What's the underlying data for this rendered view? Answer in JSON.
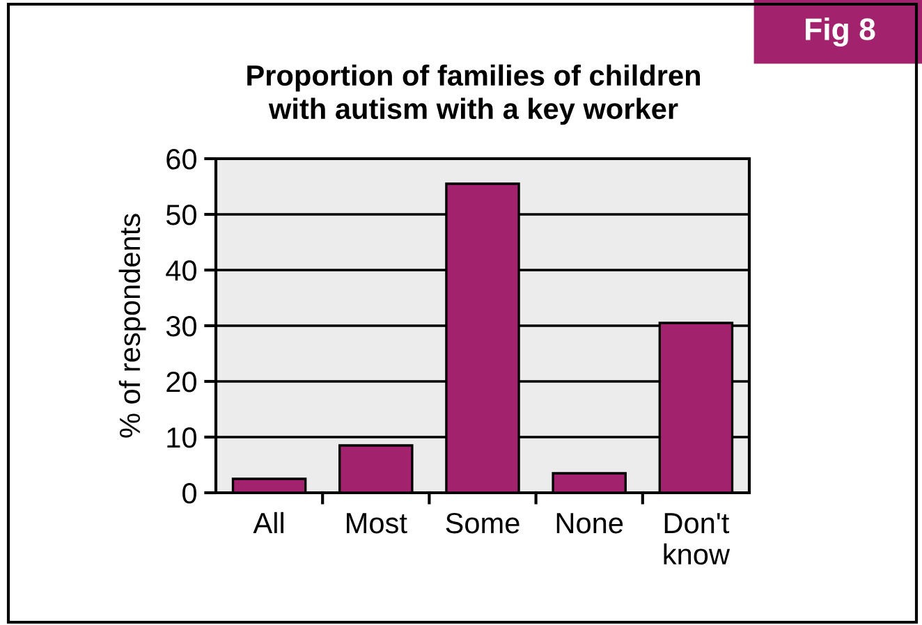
{
  "chart_data": {
    "type": "bar",
    "title": "Proportion of families of children\nwith autism with a key worker",
    "ylabel": "% of respondents",
    "categories": [
      "All",
      "Most",
      "Some",
      "None",
      "Don't\nknow"
    ],
    "values": [
      2.5,
      8.5,
      55.5,
      3.5,
      30.5
    ],
    "color": "#a3226e",
    "ylim": [
      0,
      60
    ],
    "yticks": [
      0,
      10,
      20,
      30,
      40,
      50,
      60
    ],
    "grid": "y",
    "annotations": [
      "Fig 8"
    ]
  }
}
